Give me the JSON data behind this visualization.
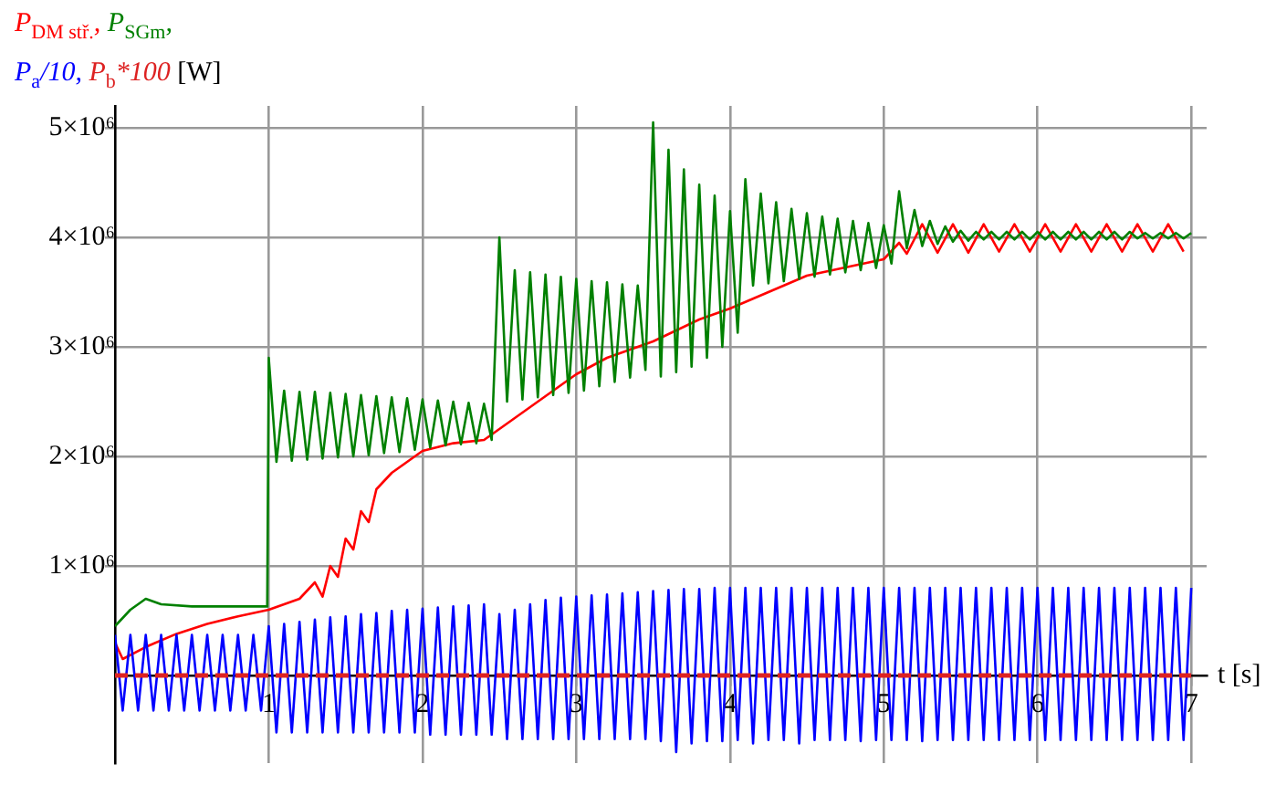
{
  "chart_data": {
    "type": "line",
    "xlabel": "t [s]",
    "ylabel": "[W]",
    "legend": "top left",
    "grid": true,
    "marker": "none",
    "xlim": [
      0,
      7.1
    ],
    "xticks": [
      1,
      2,
      3,
      4,
      5,
      6,
      7
    ],
    "ylim": [
      -800000,
      5200000
    ],
    "yticks": [
      {
        "value": 1000000,
        "label": "1×10⁶"
      },
      {
        "value": 2000000,
        "label": "2×10⁶"
      },
      {
        "value": 3000000,
        "label": "3×10⁶"
      },
      {
        "value": 4000000,
        "label": "4×10⁶"
      },
      {
        "value": 5000000,
        "label": "5×10⁶"
      }
    ],
    "series": [
      {
        "name": "P$_{DM stř.}$,",
        "color": "#ff0000",
        "line_style": "solid",
        "x": [
          0,
          0.05,
          0.2,
          0.4,
          0.6,
          0.8,
          1.0,
          1.2,
          1.3,
          1.35,
          1.4,
          1.45,
          1.5,
          1.55,
          1.6,
          1.65,
          1.7,
          1.8,
          1.9,
          2.0,
          2.2,
          2.4,
          2.5,
          2.6,
          2.7,
          2.8,
          2.9,
          3.0,
          3.2,
          3.5,
          3.8,
          4.0,
          4.5,
          5.0,
          5.1,
          5.15,
          5.25,
          5.35,
          5.45,
          5.55,
          5.65,
          5.75,
          5.85,
          5.95,
          6.05,
          6.15,
          6.25,
          6.35,
          6.45,
          6.55,
          6.65,
          6.75,
          6.85,
          6.95
        ],
        "values": [
          300000,
          150000,
          260000,
          380000,
          470000,
          540000,
          600000,
          700000,
          850000,
          720000,
          1000000,
          900000,
          1250000,
          1150000,
          1500000,
          1400000,
          1700000,
          1850000,
          1950000,
          2050000,
          2120000,
          2150000,
          2250000,
          2350000,
          2450000,
          2550000,
          2650000,
          2750000,
          2900000,
          3050000,
          3250000,
          3350000,
          3650000,
          3800000,
          3950000,
          3850000,
          4120000,
          3860000,
          4120000,
          3860000,
          4120000,
          3870000,
          4120000,
          3870000,
          4120000,
          3870000,
          4120000,
          3870000,
          4120000,
          3870000,
          4120000,
          3870000,
          4120000,
          3870000
        ]
      },
      {
        "name": "P$_{SGm}$,",
        "color": "#008000",
        "line_style": "solid",
        "x": [
          0,
          0.1,
          0.2,
          0.3,
          0.5,
          0.8,
          0.99,
          1.0,
          1.05,
          1.1,
          1.15,
          1.2,
          1.25,
          1.3,
          1.35,
          1.4,
          1.45,
          1.5,
          1.55,
          1.6,
          1.65,
          1.7,
          1.75,
          1.8,
          1.85,
          1.9,
          1.95,
          2.0,
          2.05,
          2.1,
          2.15,
          2.2,
          2.25,
          2.3,
          2.35,
          2.4,
          2.45,
          2.5,
          2.55,
          2.6,
          2.65,
          2.7,
          2.75,
          2.8,
          2.85,
          2.9,
          2.95,
          3.0,
          3.05,
          3.1,
          3.15,
          3.2,
          3.25,
          3.3,
          3.35,
          3.4,
          3.45,
          3.5,
          3.55,
          3.6,
          3.65,
          3.7,
          3.75,
          3.8,
          3.85,
          3.9,
          3.95,
          4.0,
          4.05,
          4.1,
          4.15,
          4.2,
          4.25,
          4.3,
          4.35,
          4.4,
          4.45,
          4.5,
          4.55,
          4.6,
          4.65,
          4.7,
          4.75,
          4.8,
          4.85,
          4.9,
          4.95,
          5.0,
          5.05,
          5.1,
          5.15,
          5.2,
          5.25,
          5.3,
          5.35,
          5.4,
          5.45,
          5.5,
          5.55,
          5.6,
          5.65,
          5.7,
          5.75,
          5.8,
          5.85,
          5.9,
          5.95,
          6.0,
          6.05,
          6.1,
          6.15,
          6.2,
          6.25,
          6.3,
          6.35,
          6.4,
          6.45,
          6.5,
          6.55,
          6.6,
          6.65,
          6.7,
          6.75,
          6.8,
          6.85,
          6.9,
          6.95,
          7.0
        ],
        "values": [
          450000,
          600000,
          700000,
          650000,
          630000,
          630000,
          630000,
          2900000,
          1950000,
          2600000,
          1960000,
          2590000,
          1970000,
          2590000,
          1980000,
          2580000,
          1990000,
          2570000,
          2000000,
          2560000,
          2010000,
          2550000,
          2030000,
          2540000,
          2040000,
          2530000,
          2060000,
          2520000,
          2080000,
          2510000,
          2100000,
          2500000,
          2110000,
          2490000,
          2120000,
          2480000,
          2150000,
          4000000,
          2500000,
          3700000,
          2520000,
          3680000,
          2540000,
          3660000,
          2560000,
          3640000,
          2580000,
          3620000,
          2600000,
          3600000,
          2640000,
          3590000,
          2680000,
          3570000,
          2720000,
          3560000,
          2790000,
          5050000,
          2730000,
          4800000,
          2770000,
          4620000,
          2820000,
          4480000,
          2900000,
          4380000,
          3000000,
          4240000,
          3130000,
          4530000,
          3560000,
          4400000,
          3580000,
          4320000,
          3600000,
          4260000,
          3620000,
          4220000,
          3640000,
          4190000,
          3660000,
          4170000,
          3680000,
          4150000,
          3700000,
          4130000,
          3720000,
          4110000,
          3760000,
          4420000,
          3900000,
          4250000,
          3920000,
          4150000,
          3940000,
          4100000,
          3960000,
          4060000,
          3970000,
          4050000,
          3980000,
          4050000,
          3980000,
          4050000,
          3980000,
          4050000,
          3980000,
          4050000,
          3980000,
          4050000,
          3980000,
          4050000,
          3980000,
          4050000,
          3980000,
          4050000,
          3980000,
          4050000,
          3980000,
          4050000,
          3990000,
          4040000,
          3990000,
          4040000,
          3990000,
          4040000,
          3990000,
          4040000
        ]
      },
      {
        "name": "P$_{a}$/10,",
        "color": "#0000ff",
        "line_style": "solid",
        "x": [
          0,
          0.05,
          0.1,
          0.15,
          0.2,
          0.25,
          0.3,
          0.35,
          0.4,
          0.45,
          0.5,
          0.55,
          0.6,
          0.65,
          0.7,
          0.75,
          0.8,
          0.85,
          0.9,
          0.95,
          1.0,
          1.05,
          1.1,
          1.15,
          1.2,
          1.25,
          1.3,
          1.35,
          1.4,
          1.45,
          1.5,
          1.55,
          1.6,
          1.65,
          1.7,
          1.75,
          1.8,
          1.85,
          1.9,
          1.95,
          2.0,
          2.05,
          2.1,
          2.15,
          2.2,
          2.25,
          2.3,
          2.35,
          2.4,
          2.45,
          2.5,
          2.55,
          2.6,
          2.65,
          2.7,
          2.75,
          2.8,
          2.85,
          2.9,
          2.95,
          3.0,
          3.05,
          3.1,
          3.15,
          3.2,
          3.25,
          3.3,
          3.35,
          3.4,
          3.45,
          3.5,
          3.55,
          3.6,
          3.65,
          3.7,
          3.75,
          3.8,
          3.85,
          3.9,
          3.95,
          4.0,
          4.05,
          4.1,
          4.15,
          4.2,
          4.25,
          4.3,
          4.35,
          4.4,
          4.45,
          4.5,
          4.55,
          4.6,
          4.65,
          4.7,
          4.75,
          4.8,
          4.85,
          4.9,
          4.95,
          5.0,
          5.05,
          5.1,
          5.15,
          5.2,
          5.25,
          5.3,
          5.35,
          5.4,
          5.45,
          5.5,
          5.55,
          5.6,
          5.65,
          5.7,
          5.75,
          5.8,
          5.85,
          5.9,
          5.95,
          6.0,
          6.05,
          6.1,
          6.15,
          6.2,
          6.25,
          6.3,
          6.35,
          6.4,
          6.45,
          6.5,
          6.55,
          6.6,
          6.65,
          6.7,
          6.75,
          6.8,
          6.85,
          6.9,
          6.95,
          7.0
        ],
        "values": [
          370000,
          -320000,
          370000,
          -320000,
          370000,
          -320000,
          370000,
          -320000,
          370000,
          -320000,
          370000,
          -320000,
          370000,
          -320000,
          370000,
          -320000,
          370000,
          -320000,
          370000,
          -320000,
          450000,
          -520000,
          470000,
          -520000,
          490000,
          -520000,
          510000,
          -520000,
          530000,
          -520000,
          540000,
          -520000,
          560000,
          -520000,
          570000,
          -520000,
          590000,
          -520000,
          600000,
          -520000,
          610000,
          -540000,
          620000,
          -540000,
          630000,
          -540000,
          640000,
          -540000,
          650000,
          -540000,
          560000,
          -580000,
          600000,
          -580000,
          650000,
          -580000,
          690000,
          -580000,
          710000,
          -580000,
          720000,
          -580000,
          730000,
          -580000,
          740000,
          -580000,
          750000,
          -580000,
          760000,
          -580000,
          770000,
          -600000,
          780000,
          -700000,
          790000,
          -620000,
          790000,
          -600000,
          800000,
          -600000,
          800000,
          -590000,
          800000,
          -620000,
          800000,
          -590000,
          800000,
          -590000,
          800000,
          -620000,
          800000,
          -590000,
          800000,
          -590000,
          800000,
          -590000,
          800000,
          -600000,
          800000,
          -590000,
          800000,
          -590000,
          800000,
          -590000,
          800000,
          -600000,
          800000,
          -590000,
          800000,
          -590000,
          800000,
          -590000,
          800000,
          -590000,
          800000,
          -590000,
          800000,
          -590000,
          800000,
          -590000,
          800000,
          -590000,
          800000,
          -590000,
          800000,
          -590000,
          800000,
          -590000,
          800000,
          -590000,
          800000,
          -590000,
          800000,
          -590000,
          800000,
          -590000,
          800000,
          -590000,
          800000,
          -590000,
          800000
        ]
      },
      {
        "name": "P$_{b}$*100",
        "color": "#dd2222",
        "line_style": "dashed",
        "x": [
          0,
          7
        ],
        "values": [
          0,
          0
        ]
      }
    ]
  }
}
